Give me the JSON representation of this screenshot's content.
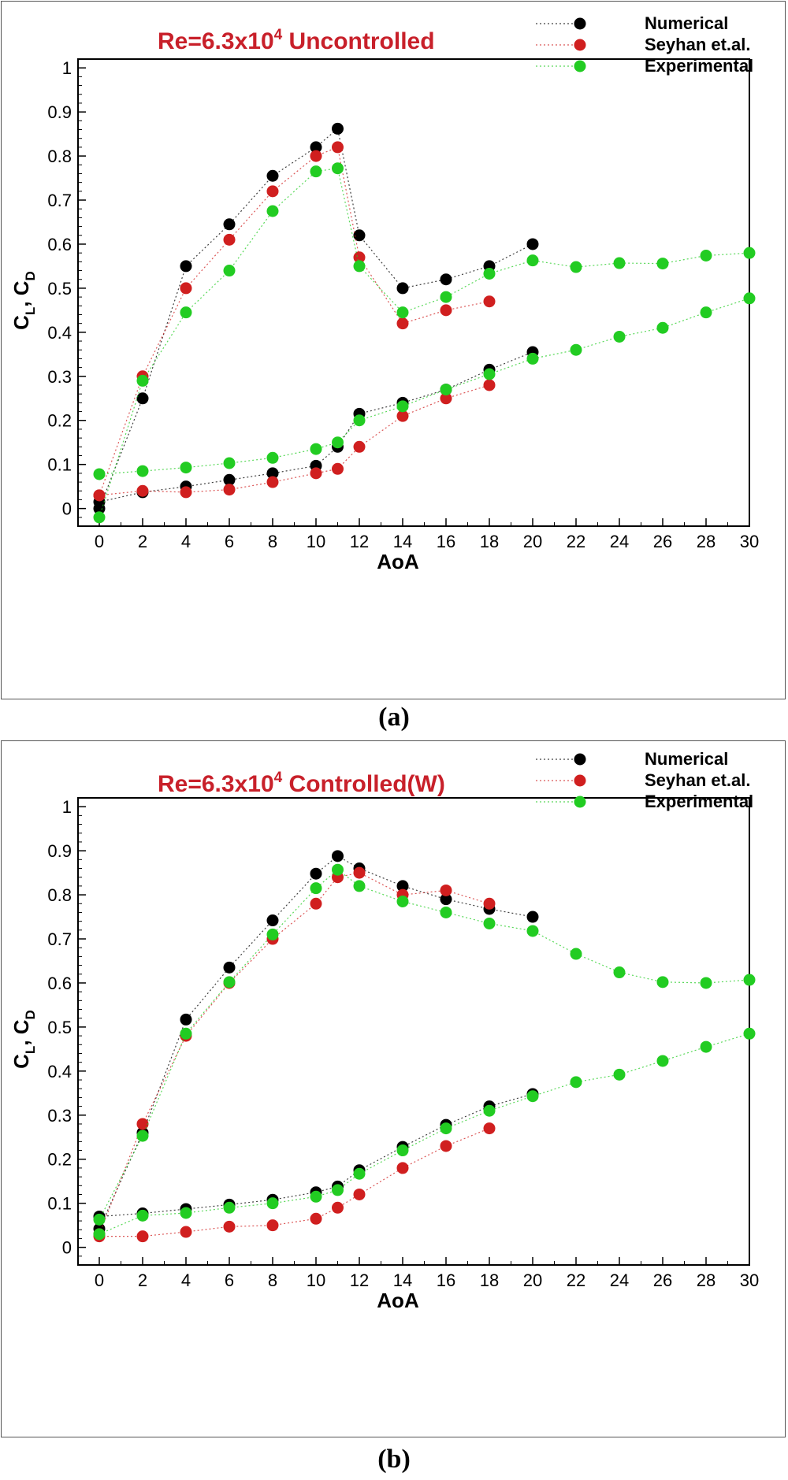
{
  "colors": {
    "numerical": "#000000",
    "seyhan": "#d01f1f",
    "experimental": "#22cc22",
    "title": "#c8202a"
  },
  "captions": [
    "(a)",
    "(b)"
  ],
  "chart_data": [
    {
      "type": "scatter",
      "title_base": "Re=6.3x10",
      "title_sup": "4",
      "title_rest": " Uncontrolled",
      "xlabel": "AoA",
      "ylabel_main": "C",
      "ylabel_sub1": "L",
      "ylabel_sep": ", C",
      "ylabel_sub2": "D",
      "xlim": [
        0,
        30
      ],
      "ylim": [
        0,
        1
      ],
      "xticks": [
        "0",
        "2",
        "4",
        "6",
        "8",
        "10",
        "12",
        "14",
        "16",
        "18",
        "20",
        "22",
        "24",
        "26",
        "28",
        "30"
      ],
      "yticks": [
        "0",
        "0.1",
        "0.2",
        "0.3",
        "0.4",
        "0.5",
        "0.6",
        "0.7",
        "0.8",
        "0.9",
        "1"
      ],
      "legend_position": "top-right",
      "legend": [
        "Numerical",
        "Seyhan et.al.",
        "Experimental"
      ],
      "series": [
        {
          "name": "Numerical",
          "color": "#000000",
          "lines": [
            {
              "x": [
                0,
                2,
                4,
                6,
                8,
                10,
                11,
                12,
                14,
                16,
                18,
                20
              ],
              "y": [
                0.0,
                0.25,
                0.55,
                0.645,
                0.755,
                0.82,
                0.862,
                0.62,
                0.5,
                0.52,
                0.55,
                0.6
              ]
            },
            {
              "x": [
                0,
                2,
                4,
                6,
                8,
                10,
                11,
                12,
                14,
                16,
                18,
                20
              ],
              "y": [
                0.015,
                0.037,
                0.05,
                0.065,
                0.08,
                0.097,
                0.14,
                0.215,
                0.24,
                0.27,
                0.315,
                0.355
              ]
            }
          ]
        },
        {
          "name": "Seyhan et.al.",
          "color": "#d01f1f",
          "lines": [
            {
              "x": [
                0,
                2,
                4,
                6,
                8,
                10,
                11,
                12,
                14,
                16,
                18
              ],
              "y": [
                0.03,
                0.3,
                0.5,
                0.61,
                0.72,
                0.8,
                0.82,
                0.57,
                0.42,
                0.45,
                0.47
              ]
            },
            {
              "x": [
                0,
                2,
                4,
                6,
                8,
                10,
                11,
                12,
                14,
                16,
                18
              ],
              "y": [
                0.03,
                0.04,
                0.037,
                0.043,
                0.06,
                0.08,
                0.09,
                0.14,
                0.21,
                0.25,
                0.28
              ]
            }
          ]
        },
        {
          "name": "Experimental",
          "color": "#22cc22",
          "lines": [
            {
              "x": [
                0,
                2,
                4,
                6,
                8,
                10,
                11,
                12,
                14,
                16,
                18,
                20,
                22,
                24,
                26,
                28,
                30
              ],
              "y": [
                -0.02,
                0.29,
                0.445,
                0.54,
                0.675,
                0.765,
                0.772,
                0.55,
                0.445,
                0.48,
                0.533,
                0.563,
                0.548,
                0.557,
                0.556,
                0.574,
                0.58
              ]
            },
            {
              "x": [
                0,
                2,
                4,
                6,
                8,
                10,
                11,
                12,
                14,
                16,
                18,
                20,
                22,
                24,
                26,
                28,
                30
              ],
              "y": [
                0.078,
                0.085,
                0.093,
                0.103,
                0.115,
                0.135,
                0.15,
                0.2,
                0.232,
                0.27,
                0.305,
                0.34,
                0.36,
                0.39,
                0.41,
                0.445,
                0.477
              ]
            }
          ]
        }
      ]
    },
    {
      "type": "scatter",
      "title_base": "Re=6.3x10",
      "title_sup": "4",
      "title_rest": " Controlled(W)",
      "xlabel": "AoA",
      "ylabel_main": "C",
      "ylabel_sub1": "L",
      "ylabel_sep": ", C",
      "ylabel_sub2": "D",
      "xlim": [
        0,
        30
      ],
      "ylim": [
        0,
        1
      ],
      "xticks": [
        "0",
        "2",
        "4",
        "6",
        "8",
        "10",
        "12",
        "14",
        "16",
        "18",
        "20",
        "22",
        "24",
        "26",
        "28",
        "30"
      ],
      "yticks": [
        "0",
        "0.1",
        "0.2",
        "0.3",
        "0.4",
        "0.5",
        "0.6",
        "0.7",
        "0.8",
        "0.9",
        "1"
      ],
      "legend_position": "top-right",
      "legend": [
        "Numerical",
        "Seyhan et.al.",
        "Experimental"
      ],
      "series": [
        {
          "name": "Numerical",
          "color": "#000000",
          "lines": [
            {
              "x": [
                0,
                2,
                4,
                6,
                8,
                10,
                11,
                12,
                14,
                16,
                18,
                20
              ],
              "y": [
                0.042,
                0.26,
                0.517,
                0.635,
                0.742,
                0.848,
                0.888,
                0.86,
                0.82,
                0.79,
                0.768,
                0.75
              ]
            },
            {
              "x": [
                0,
                2,
                4,
                6,
                8,
                10,
                11,
                12,
                14,
                16,
                18,
                20
              ],
              "y": [
                0.07,
                0.077,
                0.087,
                0.097,
                0.108,
                0.125,
                0.138,
                0.175,
                0.228,
                0.278,
                0.32,
                0.348
              ]
            }
          ]
        },
        {
          "name": "Seyhan et.al.",
          "color": "#d01f1f",
          "lines": [
            {
              "x": [
                0,
                2,
                4,
                6,
                8,
                10,
                11,
                12,
                14,
                16,
                18
              ],
              "y": [
                0.03,
                0.28,
                0.48,
                0.6,
                0.7,
                0.78,
                0.84,
                0.85,
                0.8,
                0.81,
                0.78
              ]
            },
            {
              "x": [
                0,
                2,
                4,
                6,
                8,
                10,
                11,
                12,
                14,
                16,
                18
              ],
              "y": [
                0.025,
                0.025,
                0.035,
                0.047,
                0.05,
                0.065,
                0.09,
                0.12,
                0.18,
                0.23,
                0.27
              ]
            }
          ]
        },
        {
          "name": "Experimental",
          "color": "#22cc22",
          "lines": [
            {
              "x": [
                0,
                2,
                4,
                6,
                8,
                10,
                11,
                12,
                14,
                16,
                18,
                20,
                22,
                24,
                26,
                28,
                30
              ],
              "y": [
                0.063,
                0.253,
                0.485,
                0.602,
                0.71,
                0.815,
                0.857,
                0.82,
                0.785,
                0.76,
                0.735,
                0.718,
                0.666,
                0.624,
                0.602,
                0.6,
                0.607
              ]
            },
            {
              "x": [
                0,
                2,
                4,
                6,
                8,
                10,
                11,
                12,
                14,
                16,
                18,
                20,
                22,
                24,
                26,
                28,
                30
              ],
              "y": [
                0.03,
                0.072,
                0.078,
                0.09,
                0.1,
                0.115,
                0.13,
                0.167,
                0.22,
                0.27,
                0.31,
                0.343,
                0.375,
                0.392,
                0.423,
                0.455,
                0.485
              ]
            }
          ]
        }
      ]
    }
  ]
}
